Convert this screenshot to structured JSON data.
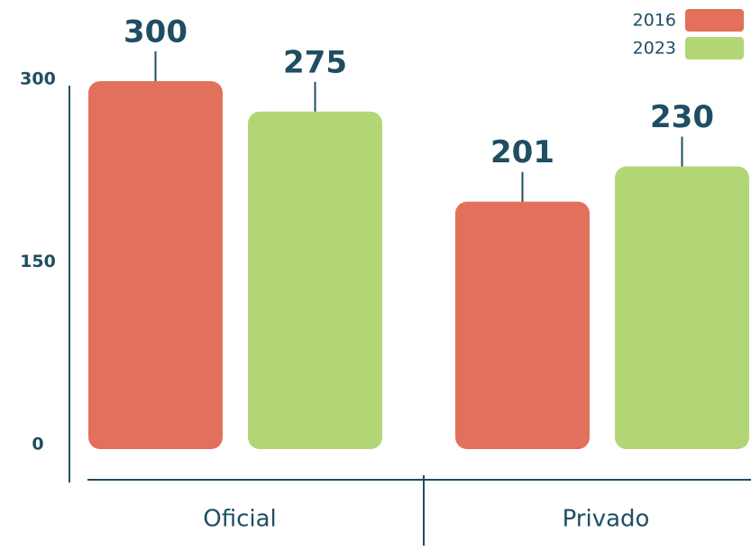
{
  "chart_data": {
    "type": "bar",
    "categories": [
      "Oficial",
      "Privado"
    ],
    "series": [
      {
        "name": "2016",
        "color": "#e3705a",
        "values": [
          300,
          201
        ]
      },
      {
        "name": "2023",
        "color": "#b2d675",
        "values": [
          275,
          230
        ]
      }
    ],
    "ylim": [
      0,
      300
    ],
    "yticks": [
      0,
      150,
      300
    ],
    "legend": "upper right"
  }
}
